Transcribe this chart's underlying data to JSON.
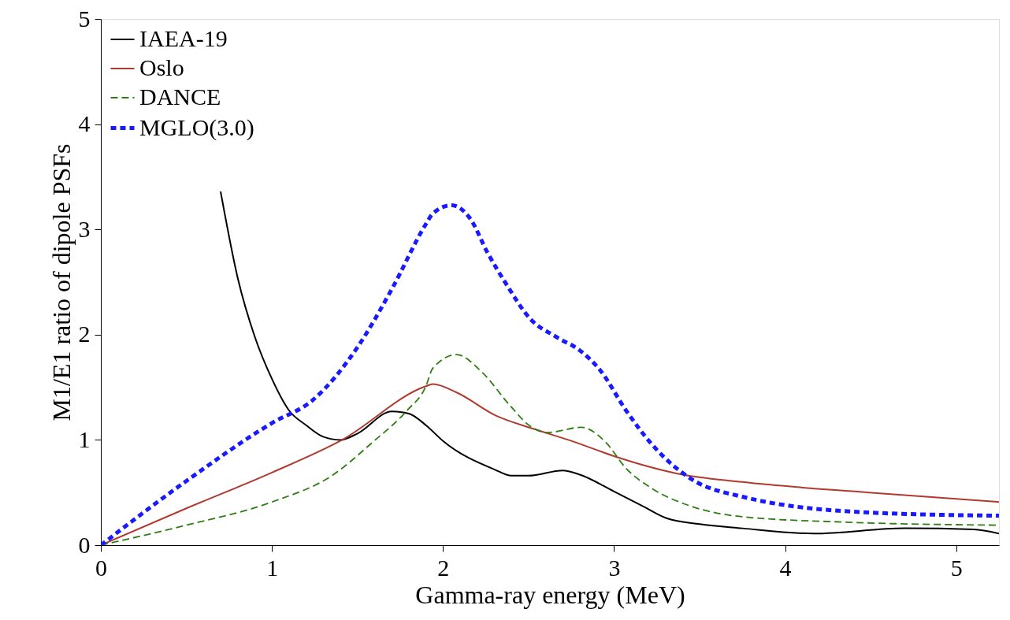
{
  "chart_data": {
    "type": "line",
    "xlabel": "Gamma-ray energy (MeV)",
    "ylabel": "M1/E1 ratio of dipole PSFs",
    "xlim": [
      0,
      5.25
    ],
    "ylim": [
      0,
      5
    ],
    "xticks": [
      0,
      1,
      2,
      3,
      4,
      5
    ],
    "yticks": [
      0,
      1,
      2,
      3,
      4,
      5
    ],
    "grid": false,
    "legend": "top left",
    "series": [
      {
        "name": "IAEA-19",
        "color": "#000000",
        "line_style": "solid",
        "x": [
          0.7,
          0.8,
          0.9,
          1.0,
          1.1,
          1.2,
          1.3,
          1.4,
          1.5,
          1.7,
          1.8,
          1.9,
          2.0,
          2.3,
          2.4,
          2.5,
          2.7,
          2.8,
          3.0,
          3.18,
          3.3,
          3.5,
          3.75,
          4.17,
          4.7,
          5.1,
          5.25
        ],
        "values": [
          3.36,
          2.54,
          1.98,
          1.58,
          1.28,
          1.14,
          1.03,
          1.0,
          1.06,
          1.27,
          1.25,
          1.14,
          0.99,
          0.72,
          0.66,
          0.66,
          0.71,
          0.67,
          0.51,
          0.36,
          0.26,
          0.2,
          0.16,
          0.11,
          0.16,
          0.15,
          0.11
        ]
      },
      {
        "name": "Oslo",
        "color": "#b03a2e",
        "line_style": "solid",
        "x": [
          0,
          0.5,
          1.0,
          1.41,
          1.9,
          1.94,
          2.08,
          2.31,
          2.54,
          2.77,
          3.01,
          3.37,
          3.75,
          4.49,
          5.25
        ],
        "values": [
          0,
          0.35,
          0.69,
          1.0,
          1.51,
          1.53,
          1.45,
          1.23,
          1.1,
          0.98,
          0.84,
          0.68,
          0.6,
          0.5,
          0.41
        ]
      },
      {
        "name": "DANCE",
        "color": "#2e7d12",
        "line_style": "dashed",
        "x": [
          0,
          0.5,
          1.0,
          1.35,
          1.59,
          1.79,
          1.9,
          1.94,
          2.08,
          2.23,
          2.39,
          2.51,
          2.61,
          2.81,
          2.95,
          3.07,
          3.22,
          3.45,
          3.75,
          4.33,
          5.25
        ],
        "values": [
          0,
          0.19,
          0.41,
          0.66,
          0.98,
          1.28,
          1.51,
          1.68,
          1.81,
          1.64,
          1.33,
          1.13,
          1.07,
          1.12,
          0.98,
          0.73,
          0.54,
          0.37,
          0.27,
          0.22,
          0.19
        ]
      },
      {
        "name": "MGLO(3.0)",
        "color": "#1a1aff",
        "line_style": "dotted",
        "x": [
          0,
          0.5,
          1.0,
          1.24,
          1.5,
          1.7,
          1.9,
          1.94,
          2.05,
          2.16,
          2.26,
          2.37,
          2.51,
          2.66,
          2.8,
          2.92,
          3.07,
          3.22,
          3.45,
          3.75,
          4.49,
          5.25
        ],
        "values": [
          0,
          0.61,
          1.16,
          1.38,
          1.88,
          2.43,
          3.05,
          3.15,
          3.23,
          3.1,
          2.78,
          2.48,
          2.15,
          1.98,
          1.85,
          1.66,
          1.28,
          0.96,
          0.63,
          0.46,
          0.31,
          0.28
        ]
      }
    ]
  }
}
